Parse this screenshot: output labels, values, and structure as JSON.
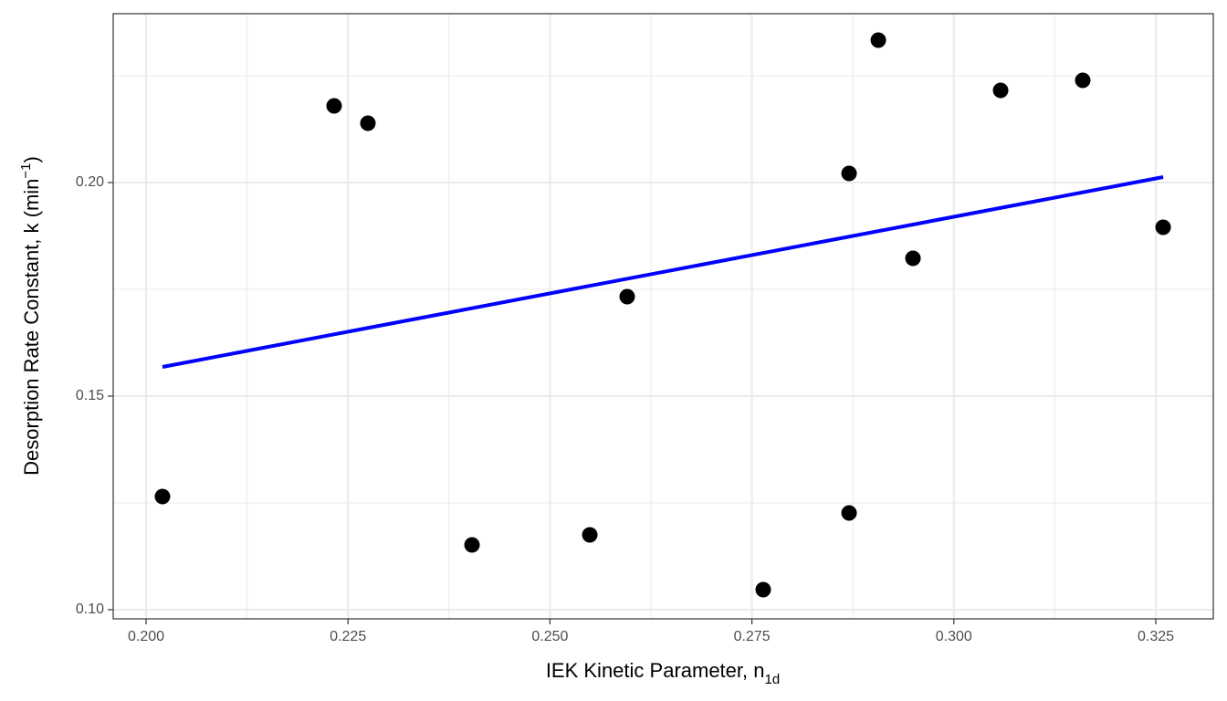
{
  "chart_data": {
    "type": "scatter",
    "xlabel": [
      {
        "text": "IEK Kinetic Parameter, n"
      },
      {
        "text": "1d",
        "shift": "sub"
      }
    ],
    "ylabel": [
      {
        "text": "Desorption Rate Constant, k (min"
      },
      {
        "text": "−1",
        "shift": "super"
      },
      {
        "text": ")"
      }
    ],
    "xlim": [
      0.19593,
      0.33212
    ],
    "ylim": [
      0.09786,
      0.23953
    ],
    "xticks": [
      {
        "value": 0.2,
        "label": "0.200"
      },
      {
        "value": 0.225,
        "label": "0.225"
      },
      {
        "value": 0.25,
        "label": "0.250"
      },
      {
        "value": 0.275,
        "label": "0.275"
      },
      {
        "value": 0.3,
        "label": "0.300"
      },
      {
        "value": 0.325,
        "label": "0.325"
      }
    ],
    "yticks": [
      {
        "value": 0.1,
        "label": "0.10"
      },
      {
        "value": 0.15,
        "label": "0.15"
      },
      {
        "value": 0.2,
        "label": "0.20"
      }
    ],
    "x_minor_grid": [
      0.2125,
      0.2375,
      0.2625,
      0.2875,
      0.3125
    ],
    "y_minor_grid": [
      0.125,
      0.175,
      0.225
    ],
    "grid": true,
    "points": {
      "color": "#000000",
      "x": [
        0.20203,
        0.22328,
        0.22746,
        0.24035,
        0.25493,
        0.25956,
        0.2764,
        0.28703,
        0.28703,
        0.29065,
        0.29494,
        0.30579,
        0.31596,
        0.32591
      ],
      "y": [
        0.1265,
        0.21795,
        0.21389,
        0.11517,
        0.11752,
        0.17329,
        0.1047,
        0.12265,
        0.20214,
        0.23333,
        0.18226,
        0.22158,
        0.22393,
        0.18953
      ]
    },
    "fit": {
      "color": "#0000ff",
      "x": [
        0.20203,
        0.32591
      ],
      "y": [
        0.15684,
        0.20128
      ]
    }
  }
}
